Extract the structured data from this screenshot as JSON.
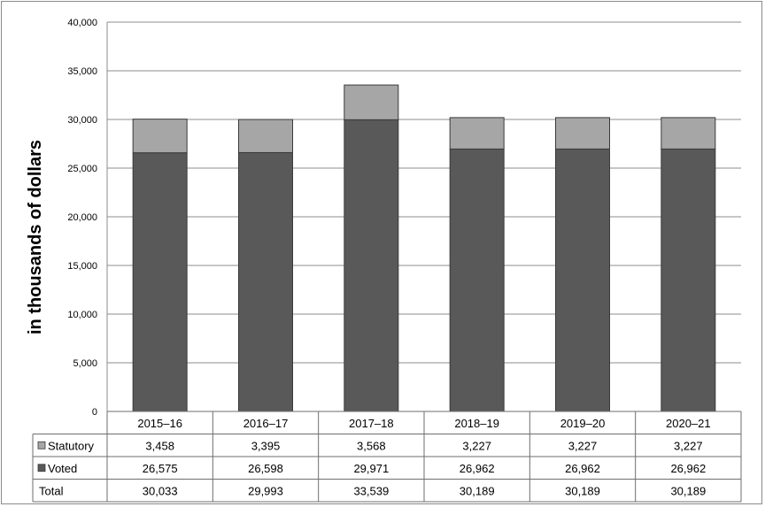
{
  "chart_data": {
    "type": "bar",
    "stacked": true,
    "categories": [
      "2015–16",
      "2016–17",
      "2017–18",
      "2018–19",
      "2019–20",
      "2020–21"
    ],
    "series": [
      {
        "name": "Statutory",
        "values": [
          3458,
          3395,
          3568,
          3227,
          3227,
          3227
        ],
        "color": "#a6a6a6"
      },
      {
        "name": "Voted",
        "values": [
          26575,
          26598,
          29971,
          26962,
          26962,
          26962
        ],
        "color": "#595959"
      }
    ],
    "totals": {
      "name": "Total",
      "values": [
        30033,
        29993,
        33539,
        30189,
        30189,
        30189
      ]
    },
    "table_text": {
      "Statutory": [
        "3,458",
        "3,395",
        "3,568",
        "3,227",
        "3,227",
        "3,227"
      ],
      "Voted": [
        "26,575",
        "26,598",
        "29,971",
        "26,962",
        "26,962",
        "26,962"
      ],
      "Total": [
        "30,033",
        "29,993",
        "33,539",
        "30,189",
        "30,189",
        "30,189"
      ]
    },
    "ylabel": "in thousands of dollars",
    "ylim": [
      0,
      40000
    ],
    "yticks": [
      0,
      5000,
      10000,
      15000,
      20000,
      25000,
      30000,
      35000,
      40000
    ],
    "ytick_labels": [
      "0",
      "5,000",
      "10,000",
      "15,000",
      "20,000",
      "25,000",
      "30,000",
      "35,000",
      "40,000"
    ],
    "grid": true,
    "legend": "data-table-left"
  }
}
